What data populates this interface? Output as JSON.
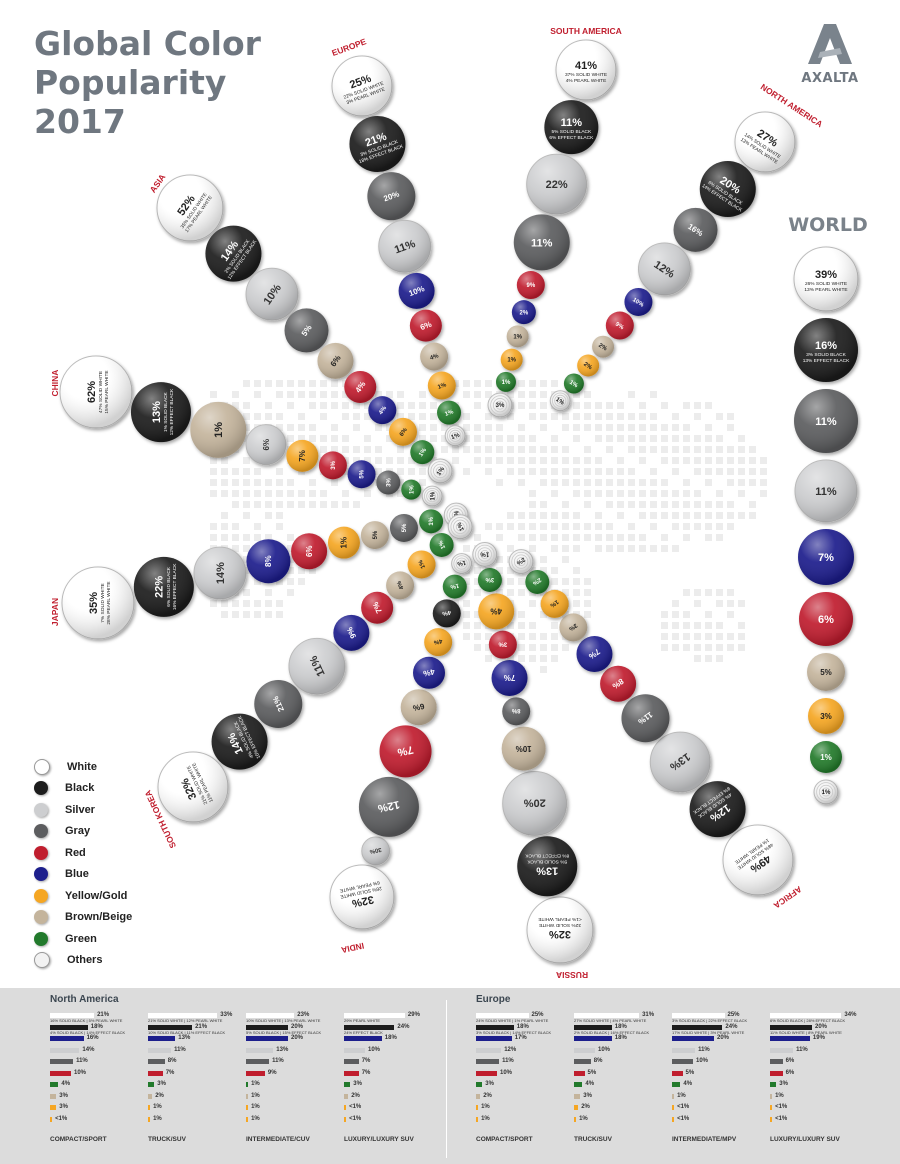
{
  "title_lines": [
    "Global Color",
    "Popularity",
    "2017"
  ],
  "brand": "AXALTA",
  "legend": [
    {
      "name": "White",
      "color": "#ffffff"
    },
    {
      "name": "Black",
      "color": "#1c1c1c"
    },
    {
      "name": "Silver",
      "color": "#cdced0"
    },
    {
      "name": "Gray",
      "color": "#5c5d5f"
    },
    {
      "name": "Red",
      "color": "#c01e2e"
    },
    {
      "name": "Blue",
      "color": "#1d1f8c"
    },
    {
      "name": "Yellow/Gold",
      "color": "#f5a623"
    },
    {
      "name": "Brown/Beige",
      "color": "#c4b49c"
    },
    {
      "name": "Green",
      "color": "#227a2c"
    },
    {
      "name": "Others",
      "color": "#f2f2f2"
    }
  ],
  "chart_data": {
    "type": "bubble-radial",
    "title": "Global Color Popularity 2017",
    "categories": [
      "White",
      "Black",
      "Silver",
      "Gray",
      "Red",
      "Blue",
      "Yellow/Gold",
      "Brown/Beige",
      "Green",
      "Others"
    ],
    "series": [
      {
        "name": "WORLD",
        "values": [
          "39%",
          "16%",
          "11%",
          "11%",
          "6%",
          "7%",
          "3%",
          "5%",
          "1%",
          "1%"
        ],
        "notes": {
          "White": [
            "26% SOLID WHITE",
            "13% PEARL WHITE"
          ],
          "Black": [
            "3% SOLID BLACK",
            "13% EFFECT BLACK"
          ]
        }
      },
      {
        "name": "SOUTH AMERICA",
        "values": [
          "41%",
          "11%",
          "22%",
          "11%",
          "9%",
          "2%",
          "1%",
          "1%",
          "1%",
          "3%"
        ],
        "notes": {
          "White": [
            "37% SOLID WHITE",
            "4% PEARL WHITE"
          ],
          "Black": [
            "5% SOLID BLACK",
            "6% EFFECT BLACK"
          ]
        }
      },
      {
        "name": "NORTH AMERICA",
        "values": [
          "27%",
          "20%",
          "12%",
          "16%",
          "9%",
          "10%",
          "2%",
          "2%",
          "1%",
          "1%"
        ],
        "notes": {
          "White": [
            "14% SOLID WHITE",
            "13% PEARL WHITE"
          ],
          "Black": [
            "6% SOLID BLACK",
            "14% EFFECT BLACK"
          ]
        }
      },
      {
        "name": "EUROPE",
        "values": [
          "25%",
          "21%",
          "11%",
          "20%",
          "6%",
          "10%",
          "1%",
          "4%",
          "1%",
          "1%"
        ],
        "notes": {
          "White": [
            "22% SOLID WHITE",
            "3% PEARL WHITE"
          ],
          "Black": [
            "3% SOLID BLACK",
            "18% EFFECT BLACK"
          ]
        }
      },
      {
        "name": "ASIA",
        "values": [
          "52%",
          "14%",
          "10%",
          "5%",
          "4%",
          "4%",
          "6%",
          "6%",
          "1%",
          "1%"
        ],
        "notes": {
          "White": [
            "35% SOLID WHITE",
            "17% PEARL WHITE"
          ],
          "Black": [
            "2% SOLID BLACK",
            "12% EFFECT BLACK"
          ]
        }
      },
      {
        "name": "CHINA",
        "values": [
          "62%",
          "13%",
          "6%",
          "3%",
          "3%",
          "5%",
          "7%",
          "1%",
          "1%",
          "1%"
        ],
        "notes": {
          "White": [
            "47% SOLID WHITE",
            "15% PEARL WHITE"
          ],
          "Black": [
            "1% SOLID BLACK",
            "12% EFFECT BLACK"
          ]
        }
      },
      {
        "name": "JAPAN",
        "values": [
          "35%",
          "22%",
          "14%",
          "5%",
          "6%",
          "8%",
          "1%",
          "5%",
          "1%",
          "1%"
        ],
        "notes": {
          "White": [
            "7% SOLID WHITE",
            "28% PEARL WHITE"
          ],
          "Black": [
            "6% SOLID BLACK",
            "16% EFFECT BLACK"
          ]
        }
      },
      {
        "name": "SOUTH KOREA",
        "values": [
          "32%",
          "14%",
          "11%",
          "21%",
          "7%",
          "9%",
          "1%",
          "4%",
          "1%",
          "1%"
        ],
        "notes": {
          "White": [
            "21% SOLID WHITE",
            "11% PEARL WHITE"
          ],
          "Black": [
            "4% SOLID BLACK",
            "10% EFFECT BLACK"
          ]
        }
      },
      {
        "name": "INDIA",
        "values": [
          "32%",
          "4%",
          "30%",
          "12%",
          "7%",
          "4%",
          "4%",
          "6%",
          "1%",
          "1%"
        ],
        "notes": {
          "White": [
            "26% SOLID WHITE",
            "6% PEARL WHITE"
          ]
        }
      },
      {
        "name": "RUSSIA",
        "values": [
          "32%",
          "13%",
          "20%",
          "8%",
          "3%",
          "7%",
          "4%",
          "10%",
          "3%",
          "1%"
        ],
        "notes": {
          "White": [
            "32% SOLID WHITE",
            "<1% PEARL WHITE"
          ],
          "Black": [
            "5% SOLID BLACK",
            "8% EFFECT BLACK"
          ]
        }
      },
      {
        "name": "AFRICA",
        "values": [
          "49%",
          "12%",
          "13%",
          "11%",
          "8%",
          "7%",
          "1%",
          "3%",
          "2%",
          "2%"
        ],
        "notes": {
          "White": [
            "48% SOLID WHITE",
            "1% PEARL WHITE"
          ],
          "Black": [
            "4% SOLID BLACK",
            "8% EFFECT BLACK"
          ]
        }
      }
    ]
  },
  "bottom_panels": [
    {
      "title": "North America",
      "columns": [
        {
          "label": "COMPACT/SPORT",
          "values": [
            21,
            18,
            16,
            14,
            11,
            10,
            4,
            3,
            3,
            1
          ],
          "text": [
            "21%",
            "18%",
            "16%",
            "14%",
            "11%",
            "10%",
            "4%",
            "3%",
            "3%",
            "<1%"
          ],
          "notes": [
            "16% SOLID BLACK | 5% PEARL WHITE",
            "4% SOLID BLACK | 14% EFFECT BLACK"
          ]
        },
        {
          "label": "TRUCK/SUV",
          "values": [
            33,
            21,
            13,
            11,
            8,
            7,
            3,
            2,
            1,
            1
          ],
          "text": [
            "33%",
            "21%",
            "13%",
            "11%",
            "8%",
            "7%",
            "3%",
            "2%",
            "1%",
            "1%"
          ],
          "notes": [
            "21% SOLID WHITE | 12% PEARL WHITE",
            "10% SOLID BLACK | 11% EFFECT BLACK"
          ]
        },
        {
          "label": "INTERMEDIATE/CUV",
          "values": [
            23,
            20,
            20,
            13,
            11,
            9,
            1,
            1,
            1,
            1
          ],
          "text": [
            "23%",
            "20%",
            "20%",
            "13%",
            "11%",
            "9%",
            "1%",
            "1%",
            "1%",
            "1%"
          ],
          "notes": [
            "10% SOLID WHITE | 13% PEARL WHITE",
            "5% SOLID BLACK | 15% EFFECT BLACK"
          ]
        },
        {
          "label": "LUXURY/LUXURY SUV",
          "values": [
            29,
            24,
            18,
            10,
            7,
            7,
            3,
            2,
            1,
            1
          ],
          "text": [
            "29%",
            "24%",
            "18%",
            "10%",
            "7%",
            "7%",
            "3%",
            "2%",
            "<1%",
            "<1%"
          ],
          "notes": [
            "29% PEARL WHITE",
            "24% EFFECT BLACK"
          ]
        }
      ]
    },
    {
      "title": "Europe",
      "columns": [
        {
          "label": "COMPACT/SPORT",
          "values": [
            25,
            18,
            17,
            12,
            11,
            10,
            3,
            2,
            1,
            1
          ],
          "text": [
            "25%",
            "18%",
            "17%",
            "12%",
            "11%",
            "10%",
            "3%",
            "2%",
            "1%",
            "1%"
          ],
          "notes": [
            "24% SOLID WHITE | 1% PEARL WHITE",
            "3% SOLID BLACK | 14% EFFECT BLACK"
          ]
        },
        {
          "label": "TRUCK/SUV",
          "values": [
            31,
            18,
            18,
            10,
            8,
            5,
            4,
            3,
            2,
            1
          ],
          "text": [
            "31%",
            "18%",
            "18%",
            "10%",
            "8%",
            "5%",
            "4%",
            "3%",
            "2%",
            "1%"
          ],
          "notes": [
            "27% SOLID WHITE | 4% PEARL WHITE",
            "2% SOLID BLACK | 16% EFFECT BLACK"
          ]
        },
        {
          "label": "INTERMEDIATE/MPV",
          "values": [
            25,
            24,
            20,
            11,
            10,
            5,
            4,
            1,
            1,
            1
          ],
          "text": [
            "25%",
            "24%",
            "20%",
            "11%",
            "10%",
            "5%",
            "4%",
            "1%",
            "<1%",
            "<1%"
          ],
          "notes": [
            "3% SOLID BLACK | 22% EFFECT BLACK",
            "17% SOLID WHITE | 3% PEARL WHITE"
          ]
        },
        {
          "label": "LUXURY/LUXURY SUV",
          "values": [
            34,
            20,
            19,
            11,
            6,
            6,
            3,
            1,
            1,
            1
          ],
          "text": [
            "34%",
            "20%",
            "19%",
            "11%",
            "6%",
            "6%",
            "3%",
            "1%",
            "<1%",
            "<1%"
          ],
          "notes": [
            "6% SOLID BLACK | 28% EFFECT BLACK",
            "11% SOLID WHITE | 8% PEARL WHITE"
          ]
        }
      ]
    }
  ]
}
